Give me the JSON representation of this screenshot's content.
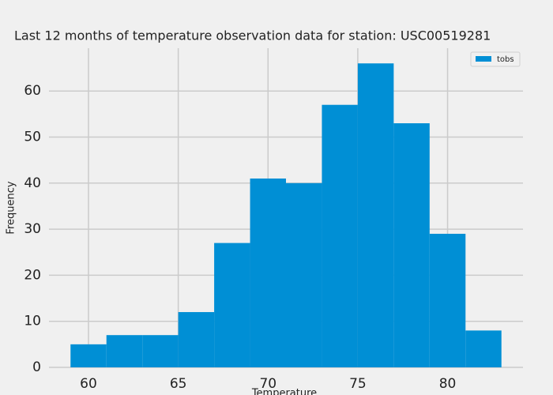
{
  "chart_data": {
    "type": "histogram",
    "title": "Last 12 months of temperature observation data for station:  USC00519281",
    "x_label": "Temperature",
    "y_label": "Frequency",
    "bins": [
      59,
      61,
      63,
      65,
      67,
      69,
      71,
      73,
      75,
      77,
      79,
      81,
      83
    ],
    "series": [
      {
        "name": "tobs",
        "color": "#008fd5",
        "values": [
          5,
          7,
          7,
          12,
          27,
          41,
          40,
          57,
          66,
          53,
          29,
          8
        ]
      }
    ],
    "xlim": [
      57.8,
      84.2
    ],
    "xticks": [
      60,
      65,
      70,
      75,
      80
    ],
    "ylim": [
      0,
      69.3
    ],
    "yticks": [
      0,
      10,
      20,
      30,
      40,
      50,
      60
    ],
    "grid": true,
    "legend": "upper right"
  }
}
